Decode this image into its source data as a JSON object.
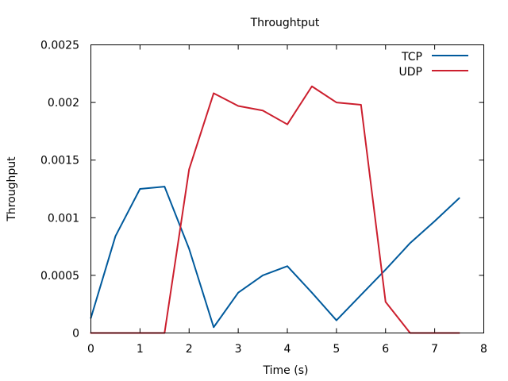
{
  "chart_data": {
    "type": "line",
    "title": "Throughtput",
    "xlabel": "Time (s)",
    "ylabel": "Throughput",
    "xlim": [
      0,
      8
    ],
    "ylim": [
      0,
      0.0025
    ],
    "grid": false,
    "legend_position": "top-right",
    "x_ticks": [
      "0",
      "1",
      "2",
      "3",
      "4",
      "5",
      "6",
      "7",
      "8"
    ],
    "y_ticks": [
      "0",
      "0.0005",
      "0.001",
      "0.0015",
      "0.002",
      "0.0025"
    ],
    "series": [
      {
        "name": "TCP",
        "color": "#005a9c",
        "x": [
          0,
          0.5,
          1,
          1.5,
          2,
          2.5,
          3,
          3.5,
          4,
          4.5,
          5,
          5.5,
          6,
          6.5,
          7,
          7.5
        ],
        "y": [
          0.00013,
          0.00084,
          0.00125,
          0.00127,
          0.00073,
          5e-05,
          0.00035,
          0.0005,
          0.00058,
          0.00035,
          0.00011,
          0.00033,
          0.00055,
          0.00078,
          0.00097,
          0.00117
        ]
      },
      {
        "name": "UDP",
        "color": "#cc1f2e",
        "x": [
          0,
          0.5,
          1,
          1.5,
          2,
          2.5,
          3,
          3.5,
          4,
          4.5,
          5,
          5.5,
          6,
          6.5,
          7,
          7.5
        ],
        "y": [
          0,
          0,
          0,
          0,
          0.00142,
          0.00208,
          0.00197,
          0.00193,
          0.00181,
          0.00214,
          0.002,
          0.00198,
          0.00027,
          0,
          0,
          0
        ]
      }
    ]
  }
}
